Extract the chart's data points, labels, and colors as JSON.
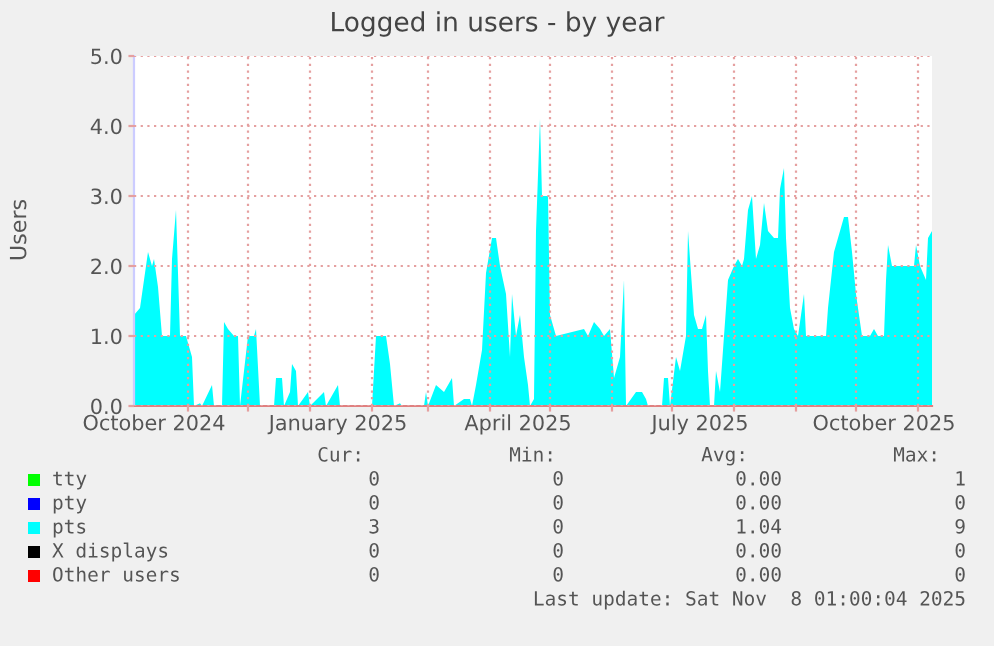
{
  "chart_data": {
    "type": "area",
    "title": "Logged in users - by year",
    "ylabel": "Users",
    "xlim": [
      "2024-10-05",
      "2025-11-08"
    ],
    "xticks": [
      {
        "value": "2024-11-01",
        "label": null
      },
      {
        "value": "2024-12-01",
        "label": null
      },
      {
        "value": "2025-01-01",
        "label": null
      },
      {
        "value": "2025-02-01",
        "label": null
      },
      {
        "value": "2025-03-01",
        "label": null
      },
      {
        "value": "2025-04-01",
        "label": null
      },
      {
        "value": "2025-05-01",
        "label": null
      },
      {
        "value": "2025-06-01",
        "label": null
      },
      {
        "value": "2025-07-01",
        "label": null
      },
      {
        "value": "2025-08-01",
        "label": null
      },
      {
        "value": "2025-09-01",
        "label": null
      },
      {
        "value": "2025-10-01",
        "label": null
      },
      {
        "value": "2025-11-01",
        "label": null
      },
      {
        "value": "2024-10-15",
        "label": "October 2024"
      },
      {
        "value": "2025-01-15",
        "label": "January 2025"
      },
      {
        "value": "2025-04-15",
        "label": "April 2025"
      },
      {
        "value": "2025-07-15",
        "label": "July 2025"
      },
      {
        "value": "2025-10-15",
        "label": "October 2025"
      }
    ],
    "ylim": [
      0,
      5
    ],
    "yticks": [
      {
        "value": 0,
        "label": "0.0"
      },
      {
        "value": 1,
        "label": "1.0"
      },
      {
        "value": 2,
        "label": "2.0"
      },
      {
        "value": 3,
        "label": "3.0"
      },
      {
        "value": 4,
        "label": "4.0"
      },
      {
        "value": 5,
        "label": "5.0"
      }
    ],
    "grid": true,
    "legend": "bottom",
    "series": [
      {
        "name": "tty",
        "color": "#00ff00"
      },
      {
        "name": "pty",
        "color": "#0000ff"
      },
      {
        "name": "pts",
        "color": "#00ffff",
        "x": [
          "2024-10-05",
          "2024-10-08",
          "2024-10-11",
          "2024-10-12",
          "2024-10-14",
          "2024-10-15",
          "2024-10-17",
          "2024-10-19",
          "2024-10-23",
          "2024-10-24",
          "2024-10-26",
          "2024-10-28",
          "2024-10-31",
          "2024-11-03",
          "2024-11-04",
          "2024-11-07",
          "2024-11-08",
          "2024-11-13",
          "2024-11-14",
          "2024-11-18",
          "2024-11-19",
          "2024-11-21",
          "2024-11-24",
          "2024-11-26",
          "2024-11-27",
          "2024-11-29",
          "2024-12-01",
          "2024-12-04",
          "2024-12-05",
          "2024-12-07",
          "2024-12-14",
          "2024-12-15",
          "2024-12-18",
          "2024-12-19",
          "2024-12-22",
          "2024-12-23",
          "2024-12-25",
          "2024-12-26",
          "2024-12-31",
          "2025-01-01",
          "2025-01-08",
          "2025-01-09",
          "2025-01-15",
          "2025-01-16",
          "2025-02-01",
          "2025-02-03",
          "2025-02-08",
          "2025-02-10",
          "2025-02-12",
          "2025-02-15",
          "2025-02-16",
          "2025-02-27",
          "2025-02-28",
          "2025-03-01",
          "2025-03-05",
          "2025-03-09",
          "2025-03-13",
          "2025-03-14",
          "2025-03-19",
          "2025-03-22",
          "2025-03-23",
          "2025-03-25",
          "2025-03-28",
          "2025-03-30",
          "2025-04-02",
          "2025-04-04",
          "2025-04-06",
          "2025-04-09",
          "2025-04-11",
          "2025-04-12",
          "2025-04-14",
          "2025-04-16",
          "2025-04-18",
          "2025-04-20",
          "2025-04-21",
          "2025-04-23",
          "2025-04-24",
          "2025-04-26",
          "2025-04-27",
          "2025-04-30",
          "2025-05-01",
          "2025-05-04",
          "2025-05-18",
          "2025-05-20",
          "2025-05-23",
          "2025-05-26",
          "2025-05-28",
          "2025-05-31",
          "2025-06-02",
          "2025-06-05",
          "2025-06-07",
          "2025-06-08",
          "2025-06-13",
          "2025-06-16",
          "2025-06-18",
          "2025-06-19",
          "2025-06-26",
          "2025-06-27",
          "2025-06-29",
          "2025-06-30",
          "2025-07-03",
          "2025-07-05",
          "2025-07-08",
          "2025-07-09",
          "2025-07-12",
          "2025-07-14",
          "2025-07-16",
          "2025-07-18",
          "2025-07-19",
          "2025-07-20",
          "2025-07-22",
          "2025-07-23",
          "2025-07-25",
          "2025-07-27",
          "2025-07-29",
          "2025-08-01",
          "2025-08-03",
          "2025-08-05",
          "2025-08-06",
          "2025-08-08",
          "2025-08-10",
          "2025-08-12",
          "2025-08-14",
          "2025-08-16",
          "2025-08-18",
          "2025-08-21",
          "2025-08-23",
          "2025-08-24",
          "2025-08-26",
          "2025-08-27",
          "2025-08-29",
          "2025-08-31",
          "2025-09-02",
          "2025-09-05",
          "2025-09-06",
          "2025-09-13",
          "2025-09-16",
          "2025-09-17",
          "2025-09-20",
          "2025-09-22",
          "2025-09-25",
          "2025-09-27",
          "2025-09-29",
          "2025-10-01",
          "2025-10-04",
          "2025-10-08",
          "2025-10-10",
          "2025-10-12",
          "2025-10-15",
          "2025-10-16",
          "2025-10-17",
          "2025-10-19",
          "2025-10-21",
          "2025-10-26",
          "2025-10-30",
          "2025-10-31",
          "2025-11-02",
          "2025-11-05",
          "2025-11-06",
          "2025-11-08"
        ],
        "values": [
          1.3,
          1.4,
          2.0,
          2.2,
          2.0,
          2.1,
          1.7,
          1.0,
          1.0,
          2.1,
          2.8,
          1.0,
          1.0,
          0.7,
          0,
          0.04,
          0,
          0.3,
          0,
          0,
          1.2,
          1.1,
          1.0,
          1.0,
          0,
          0.5,
          1.0,
          1.0,
          1.1,
          0,
          0,
          0.4,
          0.4,
          0,
          0.2,
          0.6,
          0.5,
          0,
          0.2,
          0,
          0.2,
          0,
          0.3,
          0,
          0,
          1.0,
          1.0,
          0.6,
          0,
          0.04,
          0,
          0,
          0.2,
          0,
          0.3,
          0.2,
          0.4,
          0,
          0.1,
          0.1,
          0,
          0.3,
          0.8,
          1.9,
          2.4,
          2.4,
          2.0,
          1.6,
          0.7,
          1.6,
          1.0,
          1.3,
          0.7,
          0.3,
          0,
          0.1,
          2.5,
          4.1,
          3.0,
          3.0,
          1.3,
          1.0,
          1.1,
          1.0,
          1.2,
          1.1,
          1.0,
          1.1,
          0.4,
          0.7,
          1.8,
          0,
          0.2,
          0.2,
          0.1,
          0,
          0,
          0.4,
          0.4,
          0,
          0.7,
          0.5,
          1.0,
          2.5,
          1.3,
          1.1,
          1.1,
          1.3,
          0.5,
          0,
          0,
          0.5,
          0.2,
          1.0,
          1.8,
          2.0,
          2.1,
          2.0,
          2.1,
          2.8,
          3.0,
          2.1,
          2.3,
          2.9,
          2.5,
          2.4,
          2.4,
          3.1,
          3.4,
          2.4,
          1.4,
          1.1,
          1.0,
          1.6,
          1.0,
          1.0,
          1.0,
          1.4,
          2.2,
          2.4,
          2.7,
          2.7,
          2.2,
          1.6,
          1.0,
          1.0,
          1.1,
          1.0,
          1.0,
          1.8,
          2.3,
          2.0,
          2.0,
          2.0,
          2.0,
          2.3,
          2.0,
          1.8,
          2.4,
          2.5
        ]
      },
      {
        "name": "X displays",
        "color": "#000000"
      },
      {
        "name": "Other users",
        "color": "#ff0000"
      }
    ],
    "annotations": [
      "Cur:",
      "Min:",
      "Avg:",
      "Max:",
      "0",
      "0",
      "0.00",
      "1",
      "0",
      "0",
      "0.00",
      "0",
      "3",
      "0",
      "1.04",
      "9",
      "0",
      "0",
      "0.00",
      "0",
      "0",
      "0",
      "0.00",
      "0",
      "Last update: Sat Nov  8 01:00:04 2025"
    ]
  }
}
